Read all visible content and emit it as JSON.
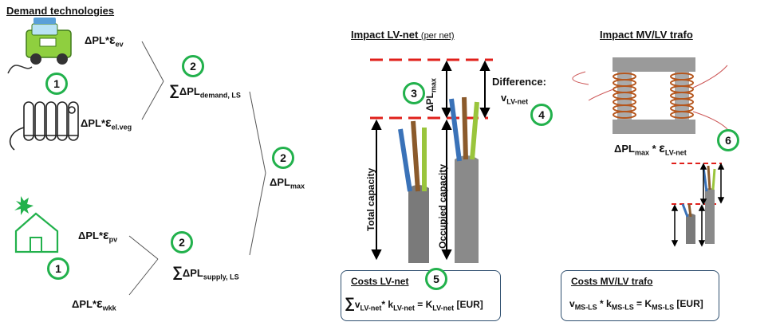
{
  "demand": {
    "title": "Demand technologies",
    "items": [
      {
        "base": "ΔPL*",
        "eps": "ε",
        "sub": "ev"
      },
      {
        "base": "ΔPL*",
        "eps": "ε",
        "sub": "el.veg"
      },
      {
        "base": "ΔPL*",
        "eps": "ε",
        "sub": "pv"
      },
      {
        "base": "ΔPL*",
        "eps": "ε",
        "sub": "wkk"
      }
    ],
    "sum_demand": {
      "sigma": "∑",
      "base": "ΔPL",
      "sub": "demand, LS"
    },
    "sum_supply": {
      "sigma": "∑",
      "base": "ΔPL",
      "sub": "supply, LS"
    },
    "max": {
      "base": "ΔPL",
      "sub": "max"
    }
  },
  "lv": {
    "title": "Impact LV-net",
    "title_note": "(per net)",
    "delta_vertical": {
      "base": "ΔPL",
      "sub": "max"
    },
    "difference_label": "Difference:",
    "v_label": {
      "base": "v",
      "sub": "LV-net"
    },
    "total_capacity": "Total capacity",
    "occupied_capacity": "Occupied capacity"
  },
  "mv": {
    "title": "Impact MV/LV trafo",
    "formula": {
      "base": "ΔPL",
      "sub1": "max",
      "mid": " * ",
      "eps": "ε",
      "sub2": "LV-net"
    }
  },
  "costs_lv": {
    "title": "Costs LV-net",
    "sigma": "∑",
    "v": "v",
    "v_sub": "LV-net",
    "star": "* ",
    "k": "k",
    "k_sub": "LV-net",
    "eq": " = ",
    "K": "K",
    "K_sub": "LV-net",
    "unit": " [EUR]"
  },
  "costs_mv": {
    "title": "Costs MV/LV trafo",
    "v": "v",
    "v_sub": "MS-LS",
    "star": " * ",
    "k": "k",
    "k_sub": "MS-LS",
    "eq": "  = ",
    "K": "K",
    "K_sub": "MS-LS",
    "unit": " [EUR]"
  },
  "steps": [
    "1",
    "2",
    "2",
    "2",
    "1",
    "3",
    "4",
    "5",
    "6",
    "2"
  ],
  "colors": {
    "accent": "#22b14c",
    "dash": "#e0201b",
    "cable": "#7a7a7a",
    "coil": "#b5561d"
  }
}
